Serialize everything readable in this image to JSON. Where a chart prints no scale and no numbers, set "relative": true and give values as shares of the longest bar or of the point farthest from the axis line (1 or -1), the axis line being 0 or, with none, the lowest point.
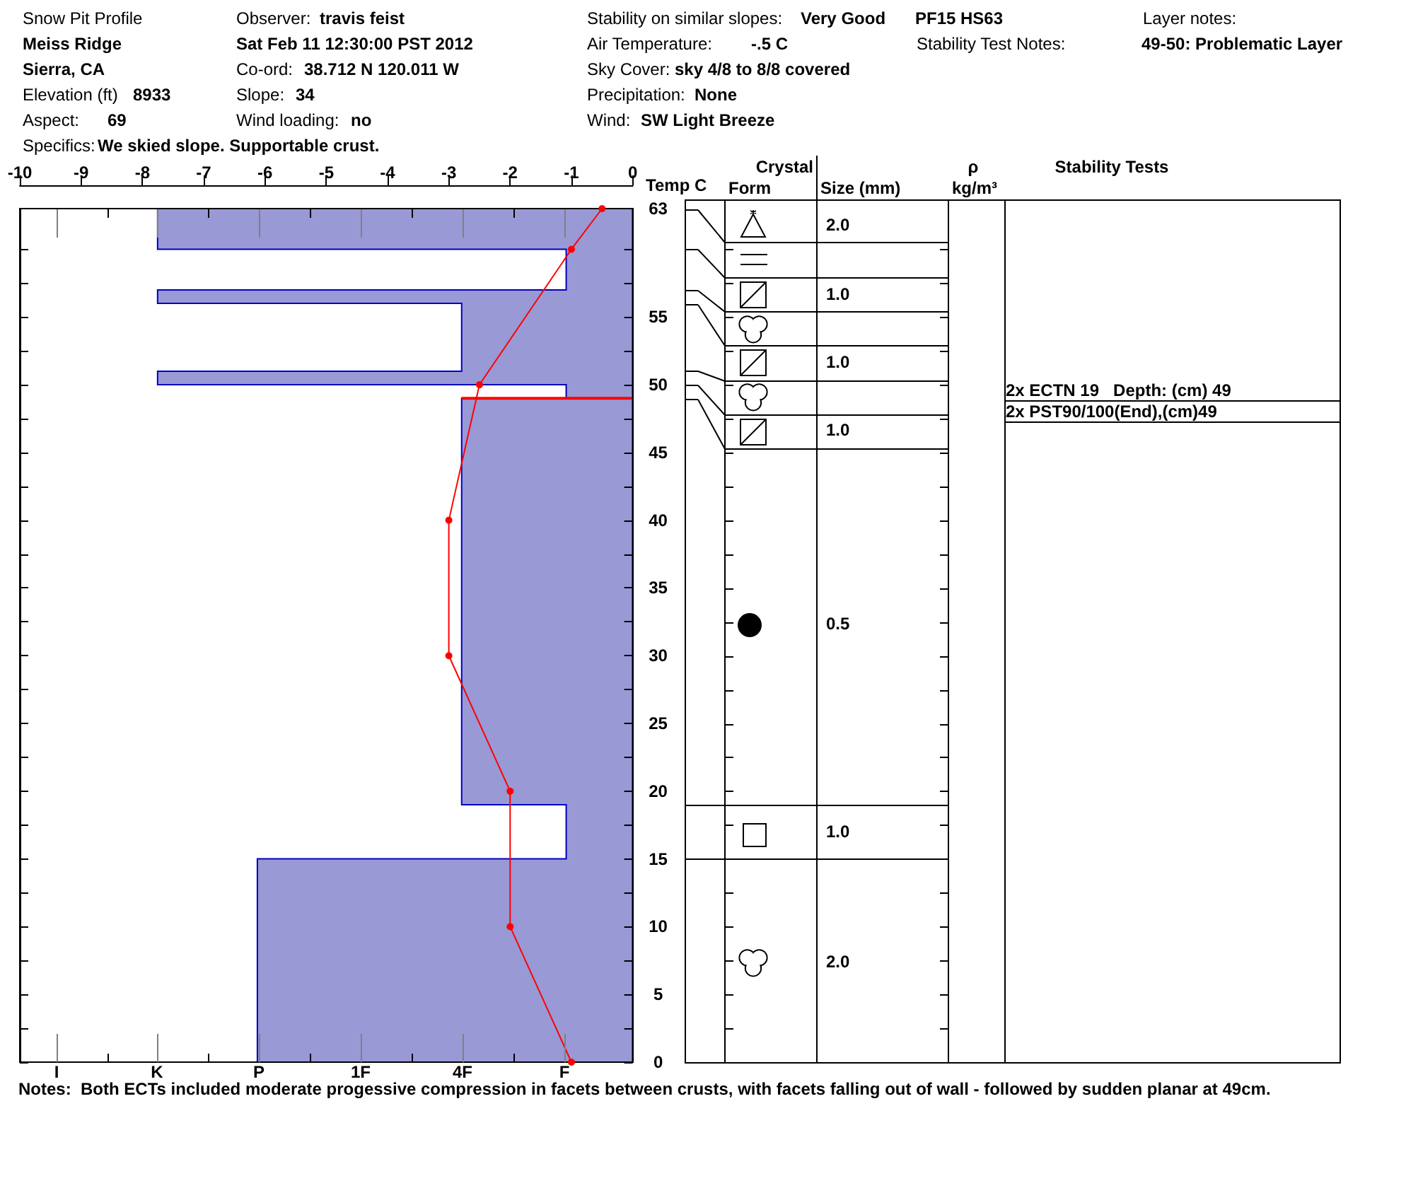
{
  "chart_data": [
    {
      "type": "line",
      "orientation": "horizontal",
      "title": "Snow Pit Profile",
      "xlabel": "Temp C",
      "color": "#ff0000",
      "x": [
        63,
        60,
        50,
        40,
        30,
        20,
        10,
        0
      ],
      "values": [
        -0.5,
        -1,
        -2.5,
        -3,
        -3,
        -2,
        -2,
        -1
      ],
      "xlim": [
        -10,
        0
      ],
      "xticks": [
        -10,
        -9,
        -8,
        -7,
        -6,
        -5,
        -4,
        -3,
        -2,
        -1,
        0
      ],
      "ylim": [
        0,
        63
      ],
      "yticks": [
        0,
        {
          "value": 2.5,
          "label": null
        },
        5,
        {
          "value": 7.5,
          "label": null
        },
        10,
        {
          "value": 12.5,
          "label": null
        },
        15,
        {
          "value": 17.5,
          "label": null
        },
        20,
        {
          "value": 22.5,
          "label": null
        },
        25,
        {
          "value": 27.5,
          "label": null
        },
        30,
        {
          "value": 32.5,
          "label": null
        },
        35,
        {
          "value": 37.5,
          "label": null
        },
        40,
        {
          "value": 42.5,
          "label": null
        },
        45,
        {
          "value": 47.5,
          "label": null
        },
        50,
        {
          "value": 52.5,
          "label": null
        },
        55,
        {
          "value": 57.5,
          "label": null
        },
        {
          "value": 60,
          "label": null
        },
        63
      ],
      "marker": "circle",
      "line_style": "solid",
      "annotations": [
        "Meiss Ridge",
        "Sierra, CA",
        "Elevation (ft)",
        "8933",
        "Aspect:",
        "69",
        "Specifics:",
        "We skied slope. Supportable crust.",
        "Observer:",
        "travis feist",
        "Sat Feb 11 12:30:00 PST 2012",
        "Co-ord:",
        "38.712 N 120.011 W",
        "Slope:",
        "34",
        "Wind loading:",
        "no",
        "Stability on similar slopes:",
        "Very Good",
        "Air Temperature:",
        "-.5 C",
        "Sky Cover:",
        "sky 4/8 to 8/8 covered",
        "Precipitation:",
        "None",
        "Wind:",
        "SW Light Breeze",
        "PF15 HS63",
        "Layer notes:",
        "Stability Test Notes:",
        "49-50: Problematic Layer",
        "Crystal",
        "Form",
        "Size (mm)",
        "ρ",
        "kg/m³",
        "Stability Tests",
        "2.0",
        "1.0",
        "1.0",
        "1.0",
        "0.5",
        "1.0",
        "2.0",
        "2x ECTN 19   Depth: (cm) 49",
        "2x PST90/100(End),(cm)49",
        "Notes:  Both ECTs included moderate progessive compression in facets between crusts, with facets falling out of wall - followed by sudden planar at 49cm."
      ]
    },
    {
      "type": "area",
      "orientation": "horizontal",
      "relative": true,
      "color": "#9999d6",
      "x": [
        63,
        60,
        60,
        57,
        57,
        56,
        56,
        51,
        51,
        50,
        50,
        49,
        49,
        19,
        19,
        15,
        15,
        0
      ],
      "values": [
        -1,
        -1,
        -0.14,
        -0.14,
        -1,
        -1,
        -0.36,
        -0.36,
        -1,
        -1,
        -0.14,
        -0.14,
        -0.36,
        -0.36,
        -0.14,
        -0.14,
        -0.79,
        -0.79
      ],
      "ylim": [
        0,
        63
      ],
      "tick_labels": false,
      "ref_lines": [
        {
          "axis": "y",
          "value": 49,
          "color": "#ff0000"
        }
      ],
      "annotations": [
        "I",
        "K",
        "P",
        "1F",
        "4F",
        "F"
      ]
    }
  ]
}
